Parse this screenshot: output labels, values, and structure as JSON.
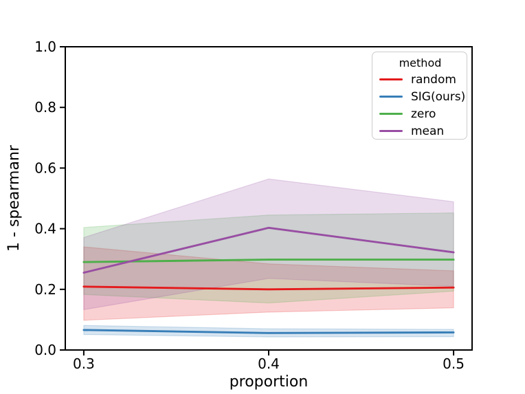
{
  "chart_data": {
    "type": "line",
    "title": "",
    "xlabel": "proportion",
    "ylabel": "1 - spearmanr",
    "x": [
      0.3,
      0.4,
      0.5
    ],
    "xlim": [
      0.29,
      0.51
    ],
    "ylim": [
      0.0,
      1.0
    ],
    "xtick_values": [
      0.3,
      0.4,
      0.5
    ],
    "xtick_labels": [
      "0.3",
      "0.4",
      "0.5"
    ],
    "ytick_values": [
      0.0,
      0.2,
      0.4,
      0.6,
      0.8,
      1.0
    ],
    "ytick_labels": [
      "0.0",
      "0.2",
      "0.4",
      "0.6",
      "0.8",
      "1.0"
    ],
    "grid": false,
    "legend": {
      "title": "method",
      "position": "upper right"
    },
    "series": [
      {
        "name": "random",
        "color": "#e41a1c",
        "values": [
          0.209,
          0.2,
          0.206
        ],
        "band_low": [
          0.098,
          0.125,
          0.139
        ],
        "band_high": [
          0.34,
          0.284,
          0.261
        ]
      },
      {
        "name": "SIG(ours)",
        "color": "#377eb8",
        "values": [
          0.066,
          0.056,
          0.058
        ],
        "band_low": [
          0.051,
          0.043,
          0.044
        ],
        "band_high": [
          0.081,
          0.07,
          0.068
        ]
      },
      {
        "name": "zero",
        "color": "#4daf4a",
        "values": [
          0.29,
          0.298,
          0.298
        ],
        "band_low": [
          0.183,
          0.155,
          0.194
        ],
        "band_high": [
          0.404,
          0.445,
          0.452
        ]
      },
      {
        "name": "mean",
        "color": "#984ea3",
        "values": [
          0.255,
          0.403,
          0.322
        ],
        "band_low": [
          0.133,
          0.236,
          0.21
        ],
        "band_high": [
          0.371,
          0.564,
          0.489
        ]
      }
    ]
  }
}
